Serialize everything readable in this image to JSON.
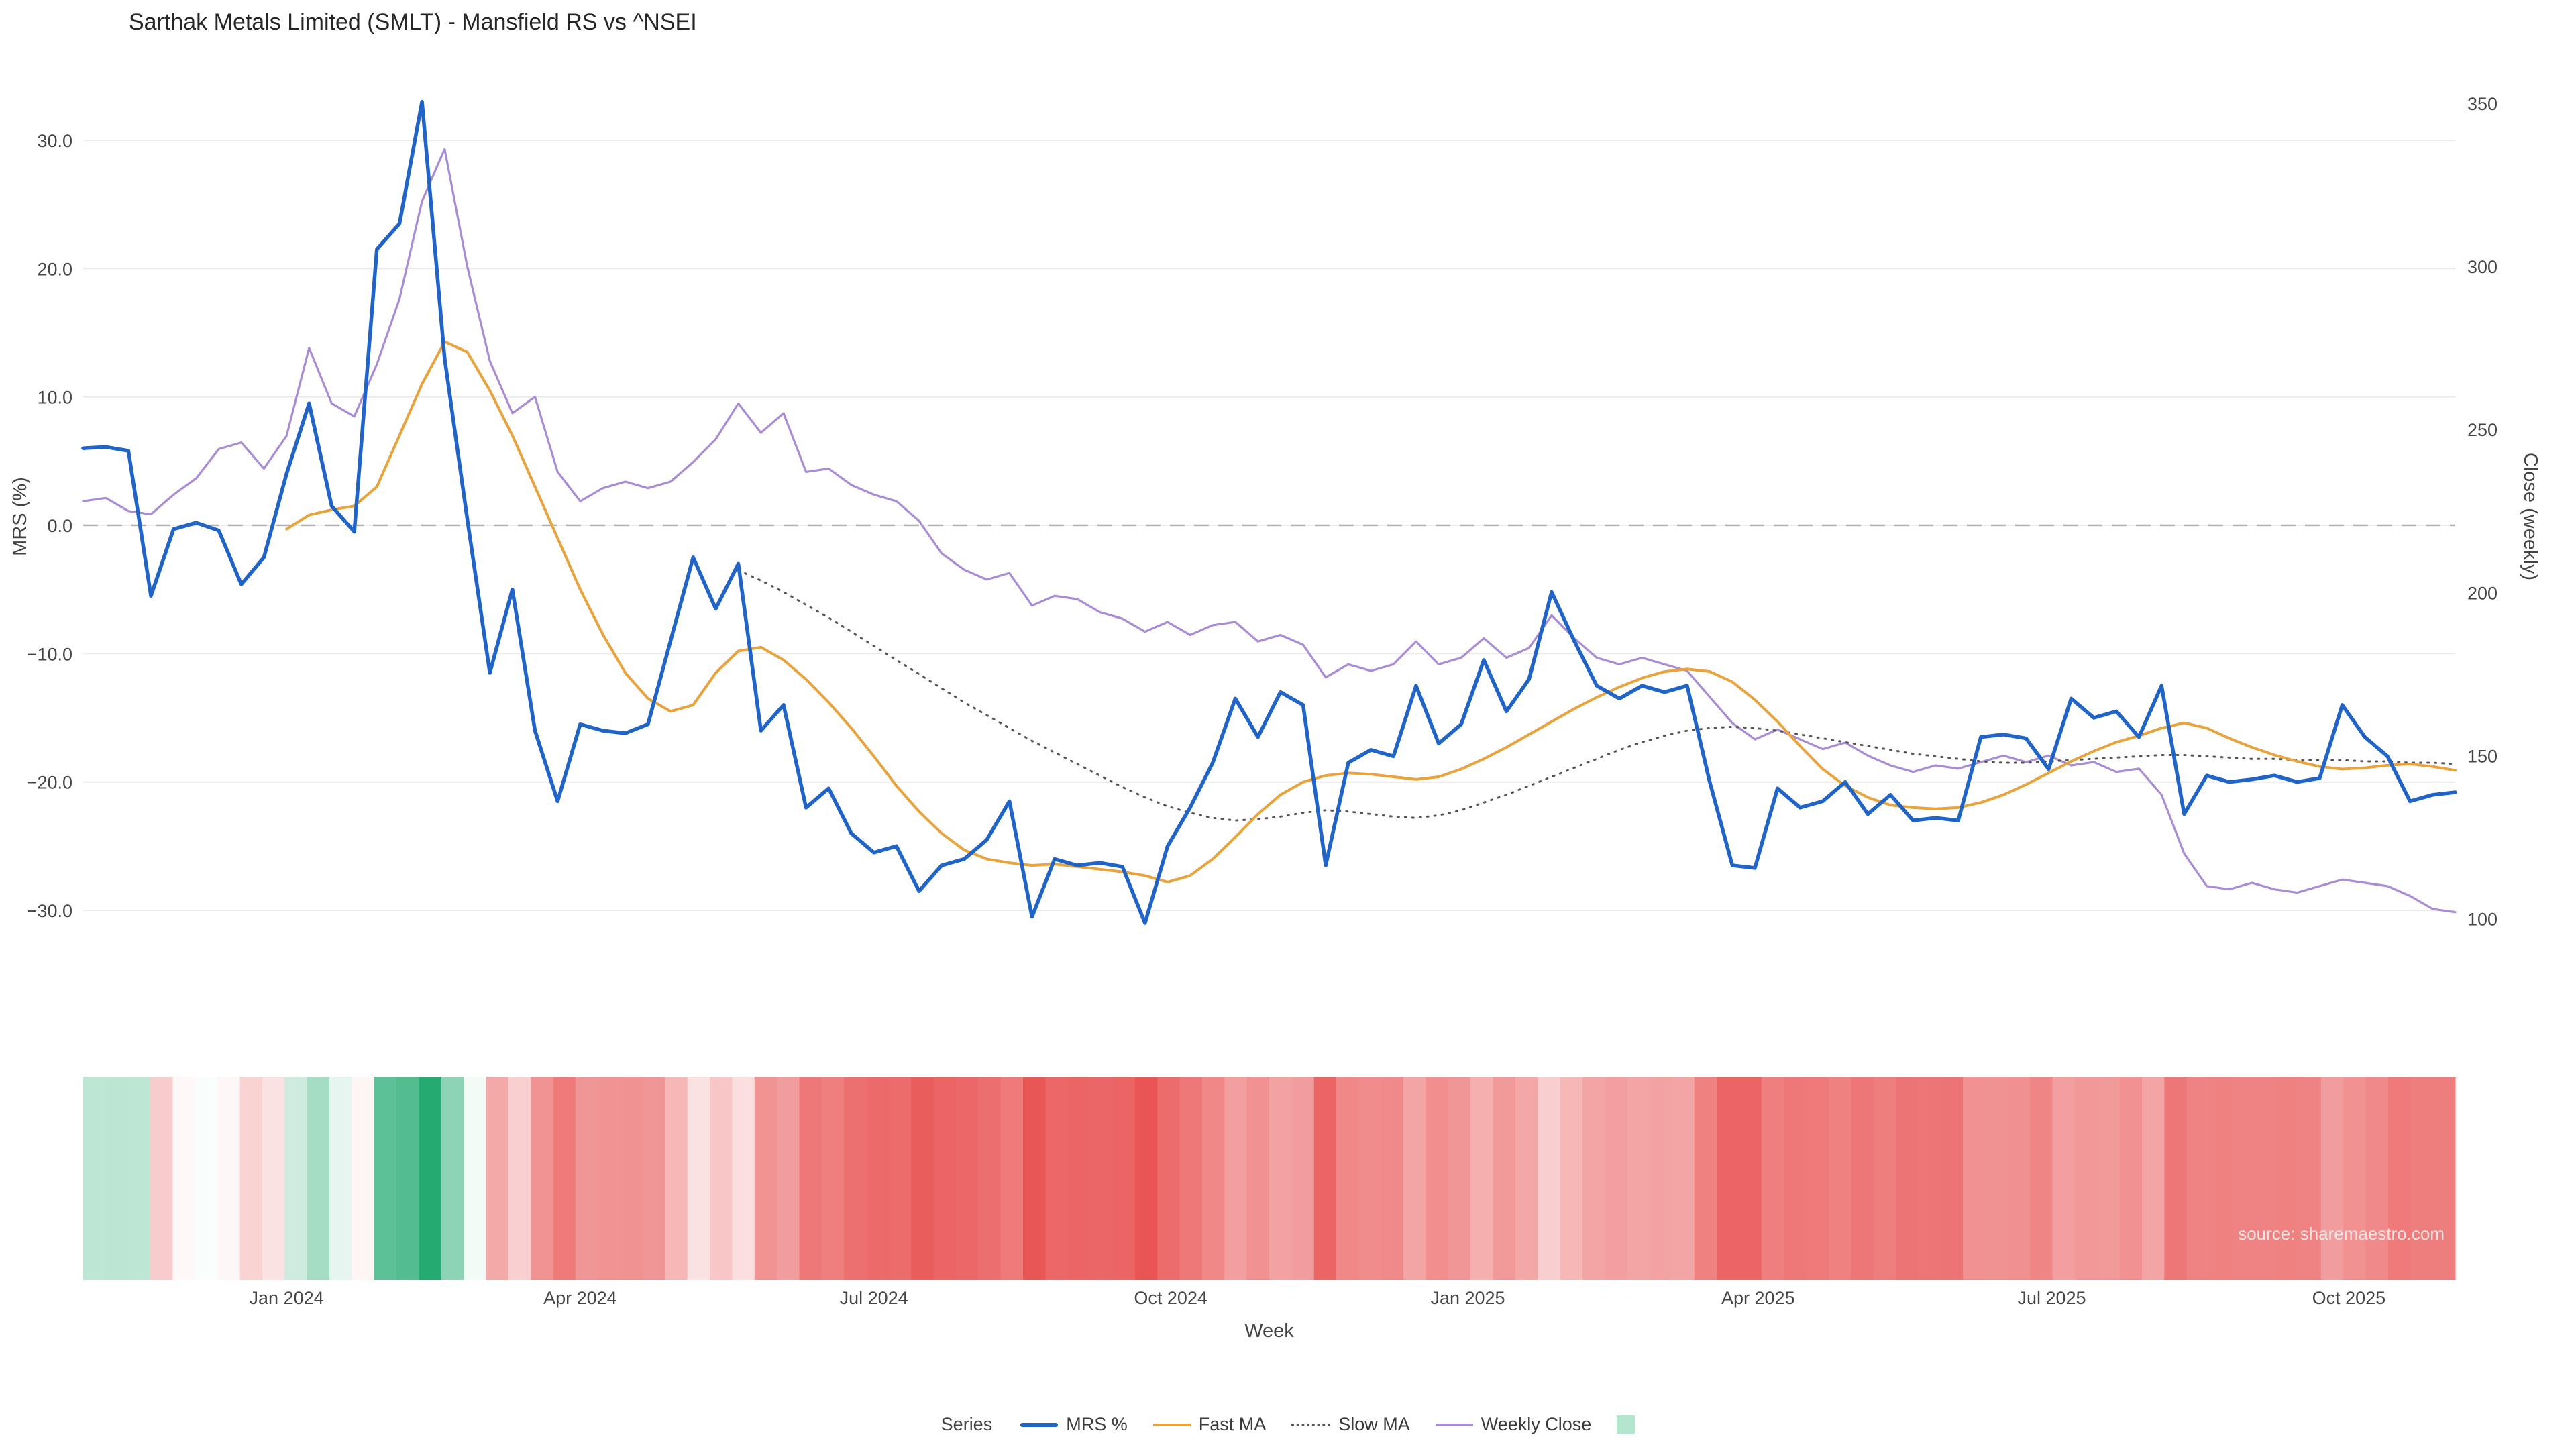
{
  "page": {
    "title": "Sarthak Metals Limited (SMLT) - Mansfield RS vs ^NSEI",
    "source_note": "source: sharemaestro.com"
  },
  "chart_data": {
    "type": "line",
    "title": "Sarthak Metals Limited (SMLT) - Mansfield RS vs ^NSEI",
    "xlabel": "Week",
    "ylabel_left": "MRS (%)",
    "ylabel_right": "Close (weekly)",
    "legend_title": "Series",
    "x_start_date": "2023-10-30",
    "x_step": "1 week",
    "weeks": 106,
    "x_ticks": [
      {
        "label": "Jan 2024",
        "week": 9.0
      },
      {
        "label": "Apr 2024",
        "week": 22.0
      },
      {
        "label": "Jul 2024",
        "week": 35.0
      },
      {
        "label": "Oct 2024",
        "week": 48.14
      },
      {
        "label": "Jan 2025",
        "week": 61.29
      },
      {
        "label": "Apr 2025",
        "week": 74.14
      },
      {
        "label": "Jul 2025",
        "week": 87.14
      },
      {
        "label": "Oct 2025",
        "week": 100.29
      }
    ],
    "left_axis": {
      "ticks": [
        30,
        20,
        10,
        0,
        -10,
        -20,
        -30
      ],
      "tick_labels": [
        "30.0",
        "20.0",
        "10.0",
        "0.0",
        "−10.0",
        "−20.0",
        "−30.0"
      ],
      "zero_line_dashed": true,
      "domain": [
        33.1,
        -36.4
      ]
    },
    "right_axis": {
      "ticks": [
        350,
        300,
        250,
        200,
        150,
        100
      ],
      "tick_labels": [
        "350",
        "300",
        "250",
        "200",
        "150",
        "100"
      ],
      "domain": [
        350.8,
        77.3
      ]
    },
    "series": [
      {
        "name": "MRS %",
        "axis": "left",
        "color": "#2064c8",
        "width": 5.5,
        "dash": null,
        "values": [
          6.0,
          6.1,
          5.8,
          -5.5,
          -0.3,
          0.2,
          -0.4,
          -4.6,
          -2.5,
          4.0,
          9.5,
          1.5,
          -0.5,
          21.5,
          23.5,
          33.0,
          13.0,
          0.5,
          -11.5,
          -5.0,
          -16.0,
          -21.5,
          -15.5,
          -16.0,
          -16.2,
          -15.5,
          -9.0,
          -2.5,
          -6.5,
          -3.0,
          -16.0,
          -14.0,
          -22.0,
          -20.5,
          -24.0,
          -25.5,
          -25.0,
          -28.5,
          -26.5,
          -26.0,
          -24.5,
          -21.5,
          -30.5,
          -26.0,
          -26.5,
          -26.3,
          -26.6,
          -31.0,
          -25.0,
          -22.0,
          -18.5,
          -13.5,
          -16.5,
          -13.0,
          -14.0,
          -26.5,
          -18.5,
          -17.5,
          -18.0,
          -12.5,
          -17.0,
          -15.5,
          -10.5,
          -14.5,
          -12.0,
          -5.2,
          -9.0,
          -12.5,
          -13.5,
          -12.5,
          -13.0,
          -12.5,
          -20.0,
          -26.5,
          -26.7,
          -20.5,
          -22.0,
          -21.5,
          -20.0,
          -22.5,
          -21.0,
          -23.0,
          -22.8,
          -23.0,
          -16.5,
          -16.3,
          -16.6,
          -19.0,
          -13.5,
          -15.0,
          -14.5,
          -16.5,
          -12.5,
          -22.5,
          -19.5,
          -20.0,
          -19.8,
          -19.5,
          -20.0,
          -19.7,
          -14.0,
          -16.5,
          -18.0,
          -21.5,
          -21.0,
          -20.8
        ]
      },
      {
        "name": "Fast MA",
        "axis": "left",
        "color": "#e8a33c",
        "width": 4,
        "dash": null,
        "values": [
          null,
          null,
          null,
          null,
          null,
          null,
          null,
          null,
          null,
          -0.3,
          0.8,
          1.2,
          1.5,
          3.0,
          7.0,
          11.0,
          14.3,
          13.5,
          10.5,
          7.0,
          3.0,
          -1.0,
          -5.0,
          -8.5,
          -11.5,
          -13.5,
          -14.5,
          -14.0,
          -11.5,
          -9.8,
          -9.5,
          -10.5,
          -12.0,
          -13.8,
          -15.8,
          -18.0,
          -20.3,
          -22.3,
          -24.0,
          -25.3,
          -26.0,
          -26.3,
          -26.5,
          -26.4,
          -26.6,
          -26.8,
          -27.0,
          -27.3,
          -27.8,
          -27.3,
          -26.0,
          -24.3,
          -22.5,
          -21.0,
          -20.0,
          -19.5,
          -19.3,
          -19.4,
          -19.6,
          -19.8,
          -19.6,
          -19.0,
          -18.2,
          -17.3,
          -16.3,
          -15.3,
          -14.3,
          -13.4,
          -12.6,
          -11.9,
          -11.4,
          -11.2,
          -11.4,
          -12.2,
          -13.6,
          -15.3,
          -17.2,
          -19.0,
          -20.3,
          -21.2,
          -21.8,
          -22.0,
          -22.1,
          -22.0,
          -21.6,
          -21.0,
          -20.2,
          -19.3,
          -18.4,
          -17.6,
          -16.9,
          -16.4,
          -15.8,
          -15.4,
          -15.8,
          -16.6,
          -17.3,
          -17.9,
          -18.4,
          -18.8,
          -19.0,
          -18.9,
          -18.7,
          -18.6,
          -18.8,
          -19.1
        ]
      },
      {
        "name": "Slow MA",
        "axis": "left",
        "color": "#555555",
        "width": 3,
        "dash": "2 9",
        "values": [
          null,
          null,
          null,
          null,
          null,
          null,
          null,
          null,
          null,
          null,
          null,
          null,
          null,
          null,
          null,
          null,
          null,
          null,
          null,
          null,
          null,
          null,
          null,
          null,
          null,
          null,
          null,
          null,
          null,
          -3.5,
          -4.3,
          -5.2,
          -6.2,
          -7.2,
          -8.3,
          -9.4,
          -10.5,
          -11.6,
          -12.7,
          -13.8,
          -14.8,
          -15.8,
          -16.8,
          -17.7,
          -18.6,
          -19.5,
          -20.4,
          -21.2,
          -21.9,
          -22.4,
          -22.8,
          -23.0,
          -22.9,
          -22.7,
          -22.4,
          -22.2,
          -22.3,
          -22.5,
          -22.7,
          -22.8,
          -22.6,
          -22.2,
          -21.6,
          -21.0,
          -20.3,
          -19.6,
          -18.9,
          -18.2,
          -17.5,
          -16.9,
          -16.4,
          -16.0,
          -15.8,
          -15.7,
          -15.8,
          -16.0,
          -16.3,
          -16.6,
          -16.9,
          -17.2,
          -17.5,
          -17.8,
          -18.0,
          -18.2,
          -18.4,
          -18.5,
          -18.5,
          -18.4,
          -18.3,
          -18.2,
          -18.1,
          -18.0,
          -17.9,
          -17.9,
          -18.0,
          -18.1,
          -18.2,
          -18.2,
          -18.3,
          -18.3,
          -18.3,
          -18.4,
          -18.4,
          -18.5,
          -18.5,
          -18.6
        ]
      },
      {
        "name": "Weekly Close",
        "axis": "right",
        "color": "#a98cd6",
        "width": 3.2,
        "dash": null,
        "values": [
          228,
          229,
          225,
          224,
          230,
          235,
          244,
          246,
          238,
          248,
          275,
          258,
          254,
          270,
          290,
          320,
          336,
          300,
          271,
          255,
          260,
          237,
          228,
          232,
          234,
          232,
          234,
          240,
          247,
          258,
          249,
          255,
          237,
          238,
          233,
          230,
          228,
          222,
          212,
          207,
          204,
          206,
          196,
          199,
          198,
          194,
          192,
          188,
          191,
          187,
          190,
          191,
          185,
          187,
          184,
          174,
          178,
          176,
          178,
          185,
          178,
          180,
          186,
          180,
          183,
          193,
          186,
          180,
          178,
          180,
          178,
          176,
          168,
          160,
          155,
          158,
          155,
          152,
          154,
          150,
          147,
          145,
          147,
          146,
          148,
          150,
          148,
          150,
          147,
          148,
          145,
          146,
          138,
          120,
          110,
          109,
          111,
          109,
          108,
          110,
          112,
          111,
          110,
          107,
          103,
          102
        ]
      }
    ],
    "heatmap": {
      "based_on": "MRS %",
      "positive_color": "#25ab72",
      "negative_color": "#e84c4c",
      "neutral_color": "#ffffff",
      "max_abs": 33,
      "legend_swatch_color": "#b4e6cd"
    }
  }
}
